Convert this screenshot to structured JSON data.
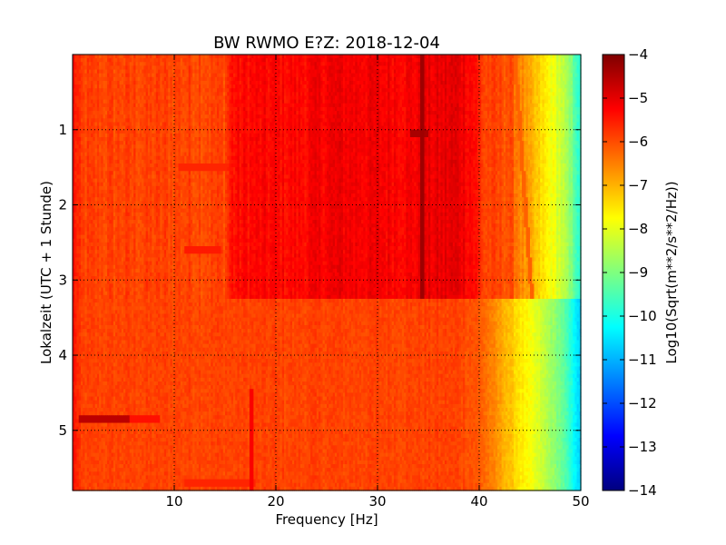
{
  "chart_data": {
    "type": "heatmap",
    "title": "BW RWMO E?Z: 2018-12-04",
    "xlabel": "Frequency [Hz]",
    "ylabel": "Lokalzeit (UTC + 1 Stunde)",
    "xlim": [
      0,
      50
    ],
    "ylim": [
      0,
      5.8
    ],
    "y_inverted": true,
    "grid": true,
    "x_ticks": [
      10,
      20,
      30,
      40,
      50
    ],
    "y_ticks": [
      1,
      2,
      3,
      4,
      5
    ],
    "colorbar": {
      "label": "Log10(Sqrt(m**2/s**2/Hz))",
      "range": [
        -14,
        -4
      ],
      "ticks": [
        -4,
        -5,
        -6,
        -7,
        -8,
        -9,
        -10,
        -11,
        -12,
        -13,
        -14
      ],
      "colormap": "jet",
      "colors": [
        "#00007f",
        "#0000ff",
        "#007fff",
        "#00ffff",
        "#7fff7f",
        "#ffff00",
        "#ff7f00",
        "#ff0000",
        "#7f0000"
      ]
    },
    "spectral_features": {
      "background_level": -5.9,
      "upper_band_time_end": 3.25,
      "lower_block": [
        {
          "freq_hz": 0,
          "value": -5.3
        },
        {
          "freq_hz": 0.8,
          "value": -5.9
        },
        {
          "freq_hz": 38,
          "value": -5.9
        },
        {
          "freq_hz": 40,
          "value": -6.1
        },
        {
          "freq_hz": 42,
          "value": -6.8
        },
        {
          "freq_hz": 44,
          "value": -7.5
        },
        {
          "freq_hz": 46,
          "value": -8.2
        },
        {
          "freq_hz": 48,
          "value": -9.1
        },
        {
          "freq_hz": 49.5,
          "value": -10.3
        },
        {
          "freq_hz": 50,
          "value": -10.8
        }
      ],
      "upper_block": [
        {
          "freq_hz": 0,
          "value": -5.3
        },
        {
          "freq_hz": 0.8,
          "value": -5.9
        },
        {
          "freq_hz": 15,
          "value": -5.9
        },
        {
          "freq_hz": 15.6,
          "value": -5.4
        },
        {
          "freq_hz": 17,
          "value": -5.3
        },
        {
          "freq_hz": 22,
          "value": -5.3
        },
        {
          "freq_hz": 26,
          "value": -5.1
        },
        {
          "freq_hz": 33,
          "value": -5.2
        },
        {
          "freq_hz": 35,
          "value": -5.1
        },
        {
          "freq_hz": 38,
          "value": -5.0
        },
        {
          "freq_hz": 39.5,
          "value": -5.3
        },
        {
          "freq_hz": 40.5,
          "value": -5.9
        },
        {
          "freq_hz": 43,
          "value": -6.0
        },
        {
          "freq_hz": 45,
          "value": -7.0
        },
        {
          "freq_hz": 46,
          "value": -7.4
        },
        {
          "freq_hz": 48,
          "value": -8.2
        },
        {
          "freq_hz": 49.5,
          "value": -9.4
        },
        {
          "freq_hz": 50,
          "value": -10.0
        }
      ],
      "lines": [
        {
          "name": "34 Hz tonal line",
          "freq_start_hz": 34.5,
          "freq_end_hz": 34.4,
          "time_start": 0,
          "time_end": 3.25,
          "value": -4.3
        },
        {
          "name": "drifting line",
          "freq_start_hz": 43.5,
          "freq_end_hz": 45.2,
          "time_start": 0,
          "time_end": 3.25,
          "value": -6.2
        },
        {
          "name": "17.5 Hz burst",
          "freq_start_hz": 17.6,
          "freq_end_hz": 17.6,
          "time_start": 4.45,
          "time_end": 5.8,
          "value": -5.2
        }
      ],
      "bursts": [
        {
          "freq_start_hz": 0.7,
          "freq_end_hz": 5.5,
          "time": 4.83,
          "value": -4.6
        },
        {
          "freq_start_hz": 5.5,
          "freq_end_hz": 8.5,
          "time": 4.83,
          "value": -5.4
        },
        {
          "freq_start_hz": 33.2,
          "freq_end_hz": 35.0,
          "time": 1.05,
          "value": -4.4
        },
        {
          "freq_start_hz": 10.5,
          "freq_end_hz": 17.5,
          "time": 1.5,
          "value": -5.6
        },
        {
          "freq_start_hz": 11.0,
          "freq_end_hz": 14.5,
          "time": 2.6,
          "value": -5.5
        },
        {
          "freq_start_hz": 11.0,
          "freq_end_hz": 18.0,
          "time": 5.7,
          "value": -5.6
        }
      ]
    }
  }
}
